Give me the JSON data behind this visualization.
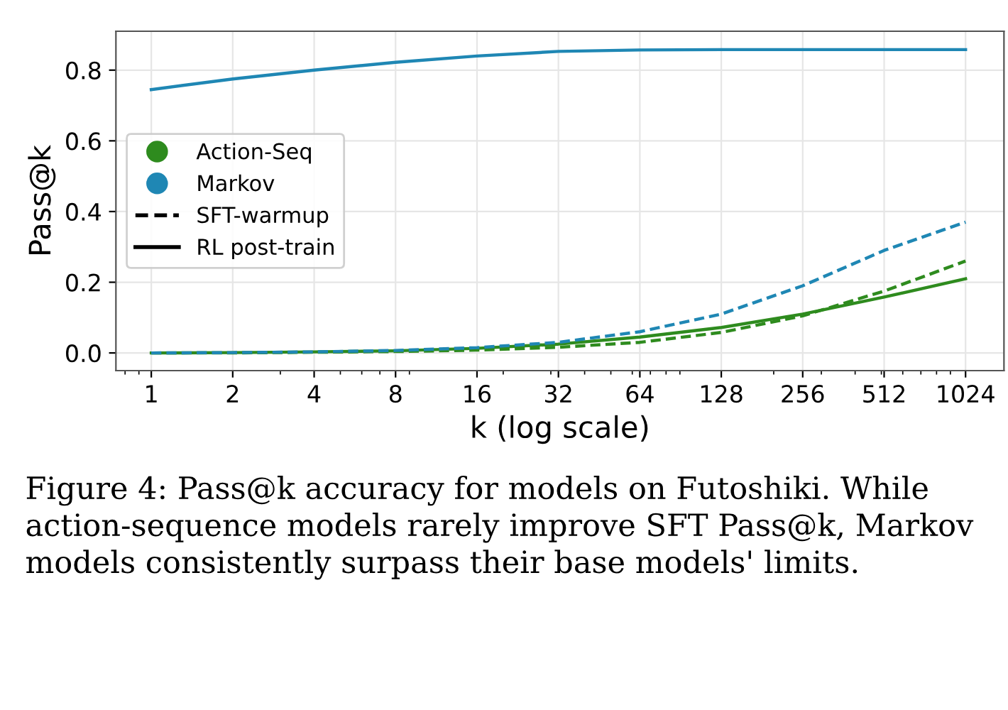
{
  "chart_data": {
    "type": "line",
    "xlabel": "k (log scale)",
    "ylabel": "Pass@k",
    "log": "x",
    "x": [
      1,
      2,
      4,
      8,
      16,
      32,
      64,
      128,
      256,
      512,
      1024
    ],
    "xlim": [
      0.74,
      1420
    ],
    "xticks": [
      1,
      2,
      4,
      8,
      16,
      32,
      64,
      128,
      256,
      512,
      1024
    ],
    "ylim": [
      -0.05,
      0.91
    ],
    "yticks": [
      {
        "value": 0,
        "label": "0.0"
      },
      {
        "value": 0.2,
        "label": "0.2"
      },
      {
        "value": 0.4,
        "label": "0.4"
      },
      {
        "value": 0.6,
        "label": "0.6"
      },
      {
        "value": 0.8,
        "label": "0.8"
      }
    ],
    "grid": true,
    "legend": "left",
    "marker": "none",
    "series": [
      {
        "name": "Action-Seq",
        "color": "#2e8b1e",
        "line_style": "solid",
        "values": [
          0,
          0.001,
          0.003,
          0.006,
          0.013,
          0.025,
          0.045,
          0.072,
          0.11,
          0.158,
          0.21
        ]
      },
      {
        "name": "Markov",
        "color": "#1f87b4",
        "line_style": "solid",
        "values": [
          0.745,
          0.775,
          0.8,
          0.822,
          0.84,
          0.853,
          0.857,
          0.858,
          0.858,
          0.858,
          0.858
        ]
      },
      {
        "color": "#2e8b1e",
        "line_style": "dashed",
        "values": [
          0,
          0,
          0.002,
          0.004,
          0.008,
          0.016,
          0.03,
          0.058,
          0.105,
          0.175,
          0.26
        ]
      },
      {
        "color": "#1f87b4",
        "line_style": "dashed",
        "values": [
          0,
          0.001,
          0.003,
          0.007,
          0.015,
          0.03,
          0.06,
          0.11,
          0.19,
          0.29,
          0.37
        ]
      },
      {
        "name": "SFT-warmup",
        "color": "#000000",
        "line_style": "dashed",
        "values": [
          null,
          null,
          null,
          null,
          null,
          null,
          null,
          null,
          null,
          null,
          null
        ]
      },
      {
        "name": "RL post-train",
        "color": "#000000",
        "line_style": "solid",
        "values": [
          null,
          null,
          null,
          null,
          null,
          null,
          null,
          null,
          null,
          null,
          null
        ]
      }
    ],
    "annotations": [
      "Figure 4: Pass@k accuracy for models on Futoshiki. While action-sequence models rarely improve SFT Pass@k, Markov models consistently surpass their base models' limits."
    ]
  }
}
